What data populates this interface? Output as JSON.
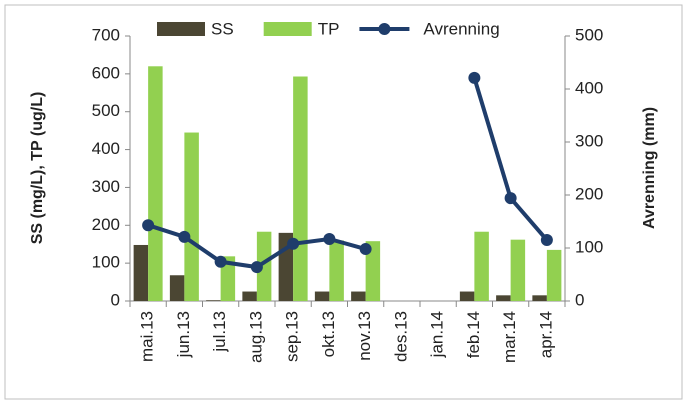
{
  "chart_data": {
    "type": "bar",
    "categories": [
      "mai.13",
      "jun.13",
      "jul.13",
      "aug.13",
      "sep.13",
      "okt.13",
      "nov.13",
      "des.13",
      "jan.14",
      "feb.14",
      "mar.14",
      "apr.14"
    ],
    "series": [
      {
        "name": "SS",
        "color": "#4b4633",
        "values": [
          148,
          68,
          2,
          25,
          180,
          25,
          25,
          null,
          null,
          25,
          15,
          15
        ]
      },
      {
        "name": "TP",
        "color": "#92d050",
        "values": [
          620,
          445,
          118,
          183,
          593,
          160,
          158,
          null,
          null,
          183,
          162,
          135
        ]
      },
      {
        "name": "Avrenning",
        "color": "#1f3d6b",
        "type": "line",
        "axis": "y2",
        "values": [
          143,
          121,
          74,
          64,
          108,
          117,
          98,
          null,
          null,
          421,
          194,
          115
        ]
      }
    ],
    "y_label": "SS (mg/L), TP (ug/L)",
    "y2_label": "Avrenning (mm)",
    "ylim": [
      0,
      700
    ],
    "yticks": [
      0,
      100,
      200,
      300,
      400,
      500,
      600,
      700
    ],
    "y2lim": [
      0,
      500
    ],
    "y2ticks": [
      0,
      100,
      200,
      300,
      400,
      500
    ],
    "legend": "top"
  }
}
